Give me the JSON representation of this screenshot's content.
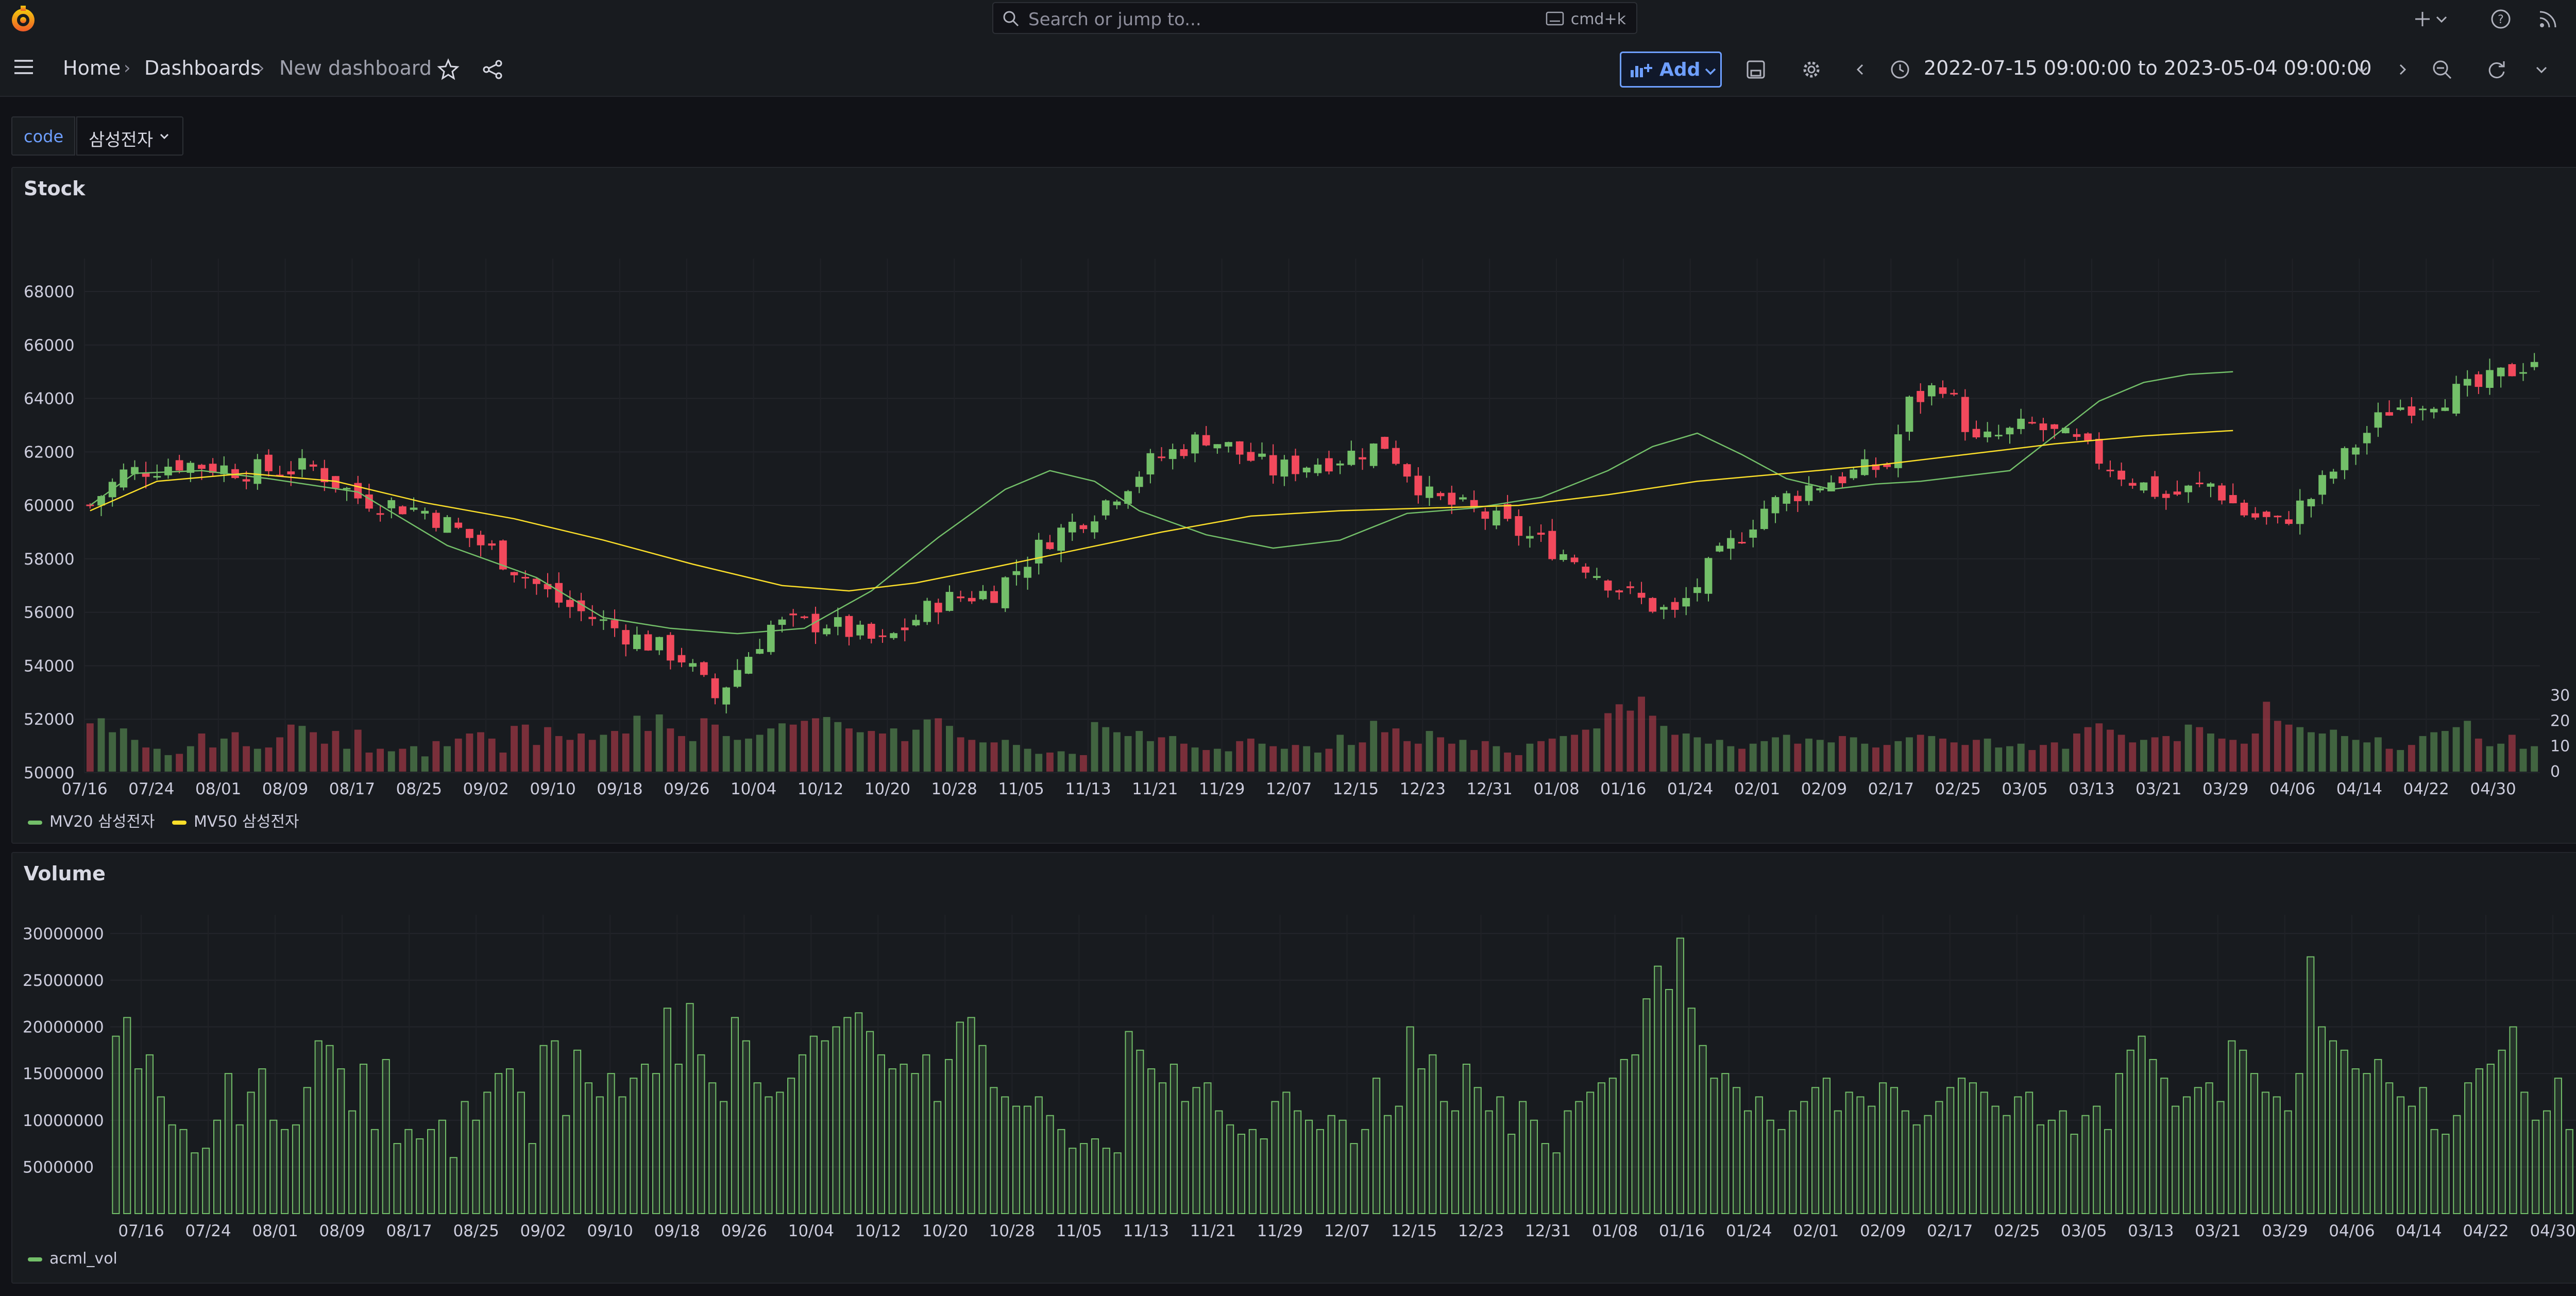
{
  "topbar": {
    "search_placeholder": "Search or jump to...",
    "search_shortcut": "cmd+k"
  },
  "navbar": {
    "breadcrumb": [
      "Home",
      "Dashboards",
      "New dashboard"
    ],
    "add_label": "Add",
    "time_range": "2022-07-15 09:00:00 to 2023-05-04 09:00:00"
  },
  "variables": {
    "code_label": "code",
    "code_value": "삼성전자"
  },
  "colors": {
    "up": "#73bf69",
    "down": "#f2495c",
    "mv20": "#73bf69",
    "mv50": "#fade2a",
    "accent": "#6e9fff"
  },
  "icons": [
    "grafana-logo-icon",
    "search-icon",
    "keyboard-icon",
    "plus-icon",
    "chevron-down-icon",
    "help-icon",
    "rss-icon",
    "avatar",
    "menu-icon",
    "star-icon",
    "share-icon",
    "save-icon",
    "gear-icon",
    "chevron-left-icon",
    "clock-icon",
    "chevron-right-icon",
    "zoom-out-icon",
    "refresh-icon",
    "collapse-icon"
  ],
  "stock_panel": {
    "title": "Stock",
    "legend": [
      "MV20 삼성전자",
      "MV50 삼성전자"
    ]
  },
  "volume_panel": {
    "title": "Volume",
    "legend": [
      "acml_vol"
    ]
  },
  "chart_data": [
    {
      "type": "candlestick",
      "title": "Stock",
      "ylim": [
        50000,
        68000
      ],
      "y_ticks": [
        "68000",
        "66000",
        "64000",
        "62000",
        "60000",
        "58000",
        "56000",
        "54000",
        "52000",
        "50000"
      ],
      "volume_ticks": [
        "30 Mil",
        "20 Mil",
        "10 Mil",
        "0"
      ],
      "x_ticks": [
        "07/16",
        "07/24",
        "08/01",
        "08/09",
        "08/17",
        "08/25",
        "09/02",
        "09/10",
        "09/18",
        "09/26",
        "10/04",
        "10/12",
        "10/20",
        "10/28",
        "11/05",
        "11/13",
        "11/21",
        "11/29",
        "12/07",
        "12/15",
        "12/23",
        "12/31",
        "01/08",
        "01/16",
        "01/24",
        "02/01",
        "02/09",
        "02/17",
        "02/25",
        "03/05",
        "03/13",
        "03/21",
        "03/29",
        "04/06",
        "04/14",
        "04/22",
        "04/30"
      ],
      "close_waypoints": [
        [
          0,
          60000
        ],
        [
          3,
          61200
        ],
        [
          8,
          61600
        ],
        [
          14,
          61300
        ],
        [
          20,
          61400
        ],
        [
          24,
          60300
        ],
        [
          30,
          59800
        ],
        [
          36,
          58300
        ],
        [
          42,
          56400
        ],
        [
          48,
          55200
        ],
        [
          53,
          54300
        ],
        [
          56,
          52800
        ],
        [
          61,
          55500
        ],
        [
          66,
          55600
        ],
        [
          71,
          54800
        ],
        [
          76,
          56400
        ],
        [
          81,
          56800
        ],
        [
          86,
          58800
        ],
        [
          90,
          59800
        ],
        [
          95,
          61600
        ],
        [
          100,
          62600
        ],
        [
          106,
          61300
        ],
        [
          112,
          61800
        ],
        [
          116,
          62300
        ],
        [
          120,
          60300
        ],
        [
          125,
          59600
        ],
        [
          130,
          58600
        ],
        [
          134,
          57800
        ],
        [
          138,
          56600
        ],
        [
          142,
          55900
        ],
        [
          145,
          57600
        ],
        [
          150,
          59900
        ],
        [
          154,
          60700
        ],
        [
          158,
          61200
        ],
        [
          161,
          61500
        ],
        [
          163,
          63800
        ],
        [
          166,
          64600
        ],
        [
          169,
          62300
        ],
        [
          174,
          63000
        ],
        [
          178,
          62300
        ],
        [
          182,
          61200
        ],
        [
          186,
          60300
        ],
        [
          190,
          60800
        ],
        [
          193,
          59700
        ],
        [
          196,
          59300
        ],
        [
          199,
          60300
        ],
        [
          203,
          62300
        ],
        [
          206,
          63600
        ],
        [
          210,
          64000
        ],
        [
          214,
          64400
        ],
        [
          219,
          65500
        ],
        [
          223,
          65300
        ],
        [
          226,
          64200
        ],
        [
          229,
          65000
        ],
        [
          232,
          65300
        ]
      ],
      "series": [
        {
          "name": "MV20 삼성전자",
          "values": [
            [
              0,
              60000
            ],
            [
              4,
              61200
            ],
            [
              10,
              61300
            ],
            [
              16,
              61000
            ],
            [
              24,
              60500
            ],
            [
              32,
              58500
            ],
            [
              40,
              57300
            ],
            [
              46,
              55800
            ],
            [
              52,
              55400
            ],
            [
              58,
              55200
            ],
            [
              64,
              55400
            ],
            [
              70,
              56800
            ],
            [
              76,
              58800
            ],
            [
              82,
              60600
            ],
            [
              86,
              61300
            ],
            [
              90,
              60900
            ],
            [
              94,
              59800
            ],
            [
              100,
              58900
            ],
            [
              106,
              58400
            ],
            [
              112,
              58700
            ],
            [
              118,
              59700
            ],
            [
              124,
              59900
            ],
            [
              130,
              60300
            ],
            [
              136,
              61300
            ],
            [
              140,
              62200
            ],
            [
              144,
              62700
            ],
            [
              148,
              61900
            ],
            [
              152,
              61000
            ],
            [
              156,
              60600
            ],
            [
              160,
              60800
            ],
            [
              164,
              60900
            ],
            [
              168,
              61100
            ],
            [
              172,
              61300
            ],
            [
              176,
              62600
            ],
            [
              180,
              63900
            ],
            [
              184,
              64600
            ],
            [
              188,
              64900
            ],
            [
              192,
              65000
            ]
          ]
        },
        {
          "name": "MV50 삼성전자",
          "values": [
            [
              0,
              59800
            ],
            [
              6,
              60900
            ],
            [
              14,
              61200
            ],
            [
              22,
              60900
            ],
            [
              30,
              60100
            ],
            [
              38,
              59500
            ],
            [
              46,
              58700
            ],
            [
              54,
              57800
            ],
            [
              62,
              57000
            ],
            [
              68,
              56800
            ],
            [
              74,
              57100
            ],
            [
              80,
              57600
            ],
            [
              88,
              58300
            ],
            [
              96,
              59000
            ],
            [
              104,
              59600
            ],
            [
              112,
              59800
            ],
            [
              120,
              59900
            ],
            [
              128,
              60000
            ],
            [
              136,
              60400
            ],
            [
              144,
              60900
            ],
            [
              152,
              61200
            ],
            [
              160,
              61500
            ],
            [
              168,
              61900
            ],
            [
              176,
              62300
            ],
            [
              184,
              62600
            ],
            [
              192,
              62800
            ]
          ]
        }
      ]
    },
    {
      "type": "bar",
      "title": "Volume",
      "ylim": [
        0,
        32000000
      ],
      "y_ticks": [
        "30000000",
        "25000000",
        "20000000",
        "15000000",
        "10000000",
        "5000000"
      ],
      "x_ticks": [
        "07/16",
        "07/24",
        "08/01",
        "08/09",
        "08/17",
        "08/25",
        "09/02",
        "09/10",
        "09/18",
        "09/26",
        "10/04",
        "10/12",
        "10/20",
        "10/28",
        "11/05",
        "11/13",
        "11/21",
        "11/29",
        "12/07",
        "12/15",
        "12/23",
        "12/31",
        "01/08",
        "01/16",
        "01/24",
        "02/01",
        "02/09",
        "02/17",
        "02/25",
        "03/05",
        "03/13",
        "03/21",
        "03/29",
        "04/06",
        "04/14",
        "04/22",
        "04/30"
      ],
      "series": [
        {
          "name": "acml_vol",
          "values": [
            19000000,
            21000000,
            15500000,
            17000000,
            12500000,
            9500000,
            9000000,
            6500000,
            7000000,
            10000000,
            15000000,
            9500000,
            13000000,
            15500000,
            10000000,
            9000000,
            9500000,
            13500000,
            18500000,
            18000000,
            15500000,
            11000000,
            16000000,
            9000000,
            16500000,
            7500000,
            9000000,
            8000000,
            9000000,
            10000000,
            6000000,
            12000000,
            10000000,
            13000000,
            15000000,
            15500000,
            13000000,
            7500000,
            18000000,
            18500000,
            10500000,
            17500000,
            14000000,
            12500000,
            15000000,
            12500000,
            14500000,
            16000000,
            15000000,
            22000000,
            16000000,
            22500000,
            17000000,
            14000000,
            12000000,
            21000000,
            18500000,
            14000000,
            12500000,
            13000000,
            14500000,
            17000000,
            19000000,
            18500000,
            20000000,
            21000000,
            21500000,
            19500000,
            17000000,
            15500000,
            16000000,
            15000000,
            17000000,
            12000000,
            16500000,
            20500000,
            21000000,
            18000000,
            13500000,
            12500000,
            11500000,
            11500000,
            12500000,
            10500000,
            9000000,
            7000000,
            7500000,
            8000000,
            7000000,
            6500000,
            19500000,
            17500000,
            15500000,
            14000000,
            16000000,
            12000000,
            13500000,
            14000000,
            11000000,
            9500000,
            8500000,
            9000000,
            8000000,
            12000000,
            13000000,
            11000000,
            10000000,
            9000000,
            10500000,
            10000000,
            7500000,
            9000000,
            14500000,
            10500000,
            11500000,
            20000000,
            15500000,
            17000000,
            12000000,
            11000000,
            16000000,
            13500000,
            11000000,
            12500000,
            8500000,
            12000000,
            10000000,
            7500000,
            6500000,
            11000000,
            12000000,
            13000000,
            14000000,
            14500000,
            16500000,
            17000000,
            23000000,
            26500000,
            24000000,
            29500000,
            22000000,
            18000000,
            14500000,
            15000000,
            13500000,
            11000000,
            12500000,
            10000000,
            9000000,
            11000000,
            12000000,
            13500000,
            14500000,
            11000000,
            13000000,
            12500000,
            11500000,
            14000000,
            13500000,
            11000000,
            9500000,
            10500000,
            12000000,
            13500000,
            14500000,
            14000000,
            13000000,
            11500000,
            10500000,
            12500000,
            13000000,
            9500000,
            10000000,
            11000000,
            8500000,
            10500000,
            11500000,
            9000000,
            15000000,
            17500000,
            19000000,
            16500000,
            14500000,
            11500000,
            12500000,
            13500000,
            14000000,
            12000000,
            18500000,
            17500000,
            15000000,
            13000000,
            12500000,
            11000000,
            15000000,
            27500000,
            20000000,
            18500000,
            17500000,
            15500000,
            15000000,
            16500000,
            14000000,
            12500000,
            11500000,
            13500000,
            9000000,
            8500000,
            10500000,
            14000000,
            15500000,
            16000000,
            17500000,
            20000000,
            13000000,
            10000000,
            11000000,
            14500000,
            9000000,
            10000000
          ]
        }
      ],
      "xlabel": "",
      "ylabel": ""
    }
  ]
}
